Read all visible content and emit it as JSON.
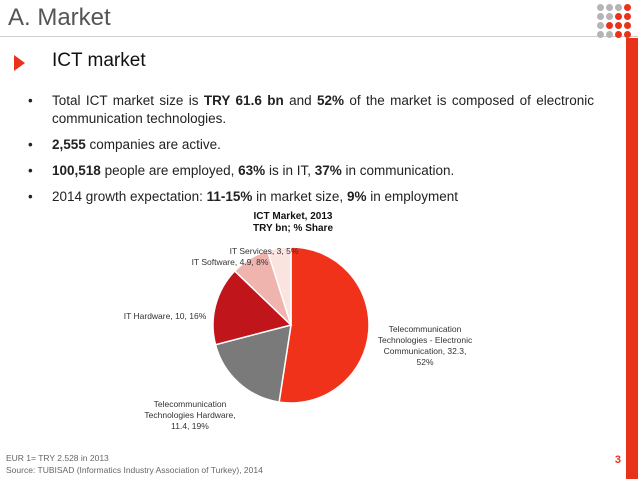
{
  "header": {
    "title": "A. Market"
  },
  "section": {
    "title": "ICT market"
  },
  "bullets": [
    [
      {
        "t": "Total ICT market size is ",
        "b": false
      },
      {
        "t": "TRY 61.6 bn",
        "b": true
      },
      {
        "t": " and ",
        "b": false
      },
      {
        "t": "52%",
        "b": true
      },
      {
        "t": " of the market is composed of electronic communication technologies.",
        "b": false
      }
    ],
    [
      {
        "t": "2,555",
        "b": true
      },
      {
        "t": " companies are active.",
        "b": false
      }
    ],
    [
      {
        "t": "100,518",
        "b": true
      },
      {
        "t": " people are employed, ",
        "b": false
      },
      {
        "t": "63%",
        "b": true
      },
      {
        "t": " is in IT, ",
        "b": false
      },
      {
        "t": "37%",
        "b": true
      },
      {
        "t": " in communication.",
        "b": false
      }
    ],
    [
      {
        "t": "2014 growth expectation: ",
        "b": false
      },
      {
        "t": "11-15%",
        "b": true
      },
      {
        "t": " in market size, ",
        "b": false
      },
      {
        "t": "9%",
        "b": true
      },
      {
        "t": " in employment",
        "b": false
      }
    ]
  ],
  "chart_data": {
    "type": "pie",
    "title": [
      "ICT Market, 2013",
      "TRY bn; % Share"
    ],
    "slices": [
      {
        "label": [
          "Telecommunication",
          "Technologies - Electronic",
          "Communication, 32.3,",
          "52%"
        ],
        "value": 32.3,
        "percent": 52,
        "color": "#f0321a"
      },
      {
        "label": [
          "Telecommunication",
          "Technologies Hardware,",
          "11.4, 19%"
        ],
        "value": 11.4,
        "percent": 19,
        "color": "#7a7a7a"
      },
      {
        "label": [
          "IT Hardware, 10, 16%"
        ],
        "value": 10,
        "percent": 16,
        "color": "#c0161b"
      },
      {
        "label": [
          "IT Software, 4.9, 8%"
        ],
        "value": 4.9,
        "percent": 8,
        "color": "#f0b4ae"
      },
      {
        "label": [
          "IT Services, 3, 5%"
        ],
        "value": 3,
        "percent": 5,
        "color": "#fbe3e0"
      }
    ]
  },
  "footer": {
    "note": "EUR 1= TRY 2.528 in 2013",
    "source": "Source: TUBISAD (Informatics Industry Association of Turkey), 2014",
    "page_number": "3"
  },
  "colors": {
    "accent": "#e8321a",
    "logo_gray": "#b5b5b5"
  }
}
